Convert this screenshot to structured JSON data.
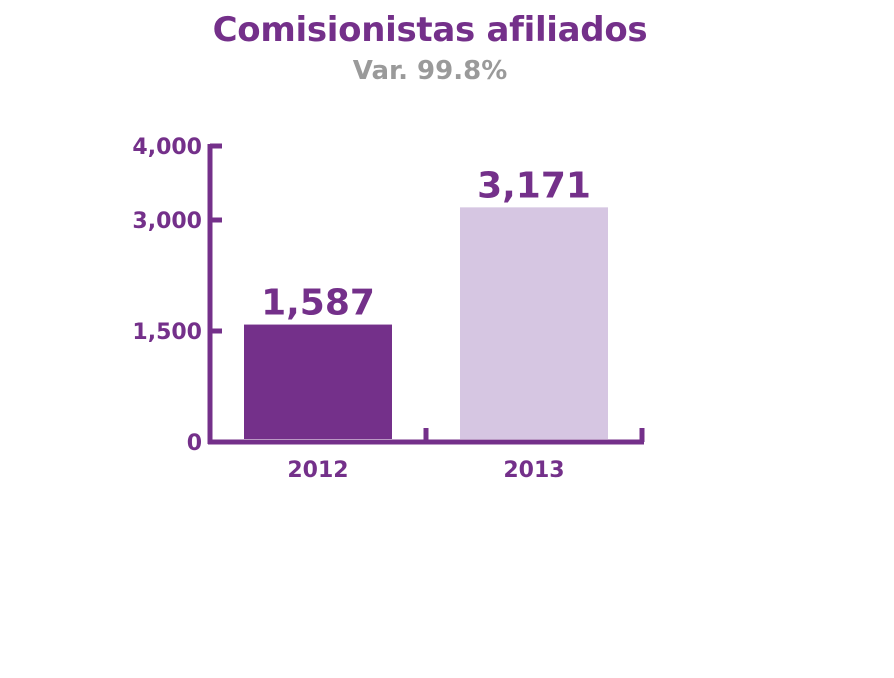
{
  "title": "Comisionistas afiliados",
  "subtitle": "Var. 99.8%",
  "chart_data": {
    "type": "bar",
    "title": "Comisionistas afiliados",
    "subtitle": "Var. 99.8%",
    "categories": [
      "2012",
      "2013"
    ],
    "values": [
      1587,
      3171
    ],
    "data_labels": [
      "1,587",
      "3,171"
    ],
    "yticks": [
      0,
      1500,
      3000,
      4000
    ],
    "ytick_labels": [
      "0",
      "1,500",
      "3,000",
      "4,000"
    ],
    "ylim": [
      0,
      4000
    ],
    "xlabel": "",
    "ylabel": "",
    "grid": false,
    "legend": "none",
    "colors": [
      "#74308a",
      "#d6c6e2"
    ],
    "axis_color": "#74308a"
  }
}
